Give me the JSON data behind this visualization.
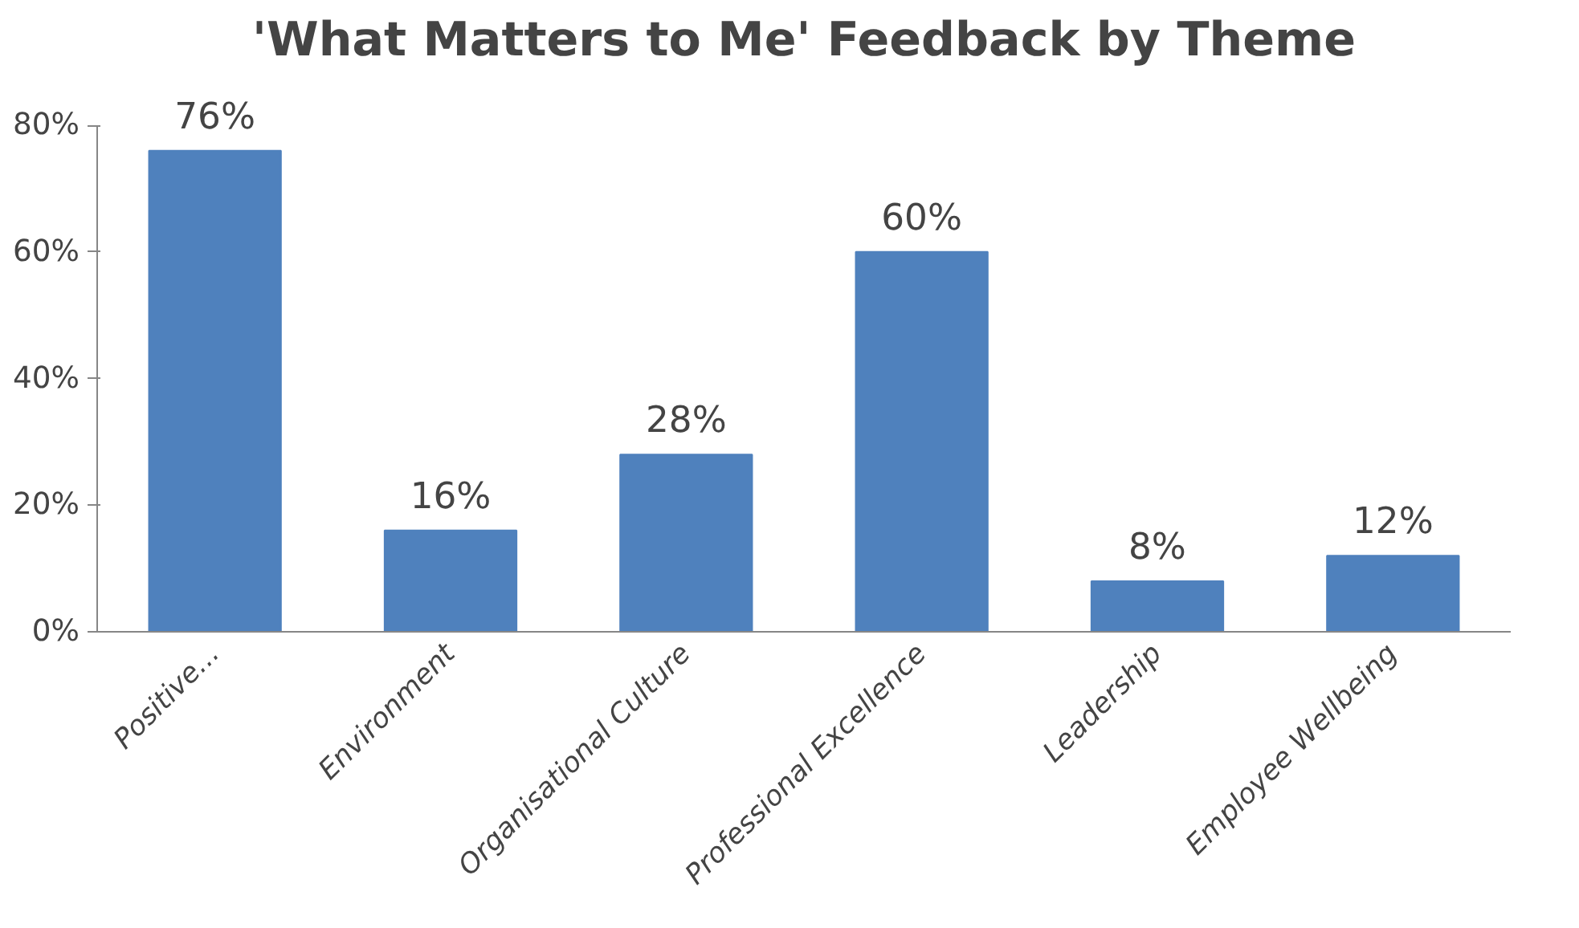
{
  "chart_data": {
    "type": "bar",
    "title": "'What Matters to Me' Feedback by Theme",
    "categories": [
      "Positive...",
      "Environment",
      "Organisational Culture",
      "Professional Excellence",
      "Leadership",
      "Employee Wellbeing"
    ],
    "values": [
      76,
      16,
      28,
      60,
      8,
      12
    ],
    "value_labels": [
      "76%",
      "16%",
      "28%",
      "60%",
      "8%",
      "12%"
    ],
    "color": "#4f81bd",
    "ylim": [
      0,
      80
    ],
    "yticks": [
      {
        "value": 0,
        "label": "0%"
      },
      {
        "value": 20,
        "label": "20%"
      },
      {
        "value": 40,
        "label": "40%"
      },
      {
        "value": 60,
        "label": "60%"
      },
      {
        "value": 80,
        "label": "80%"
      }
    ],
    "grid": false
  }
}
